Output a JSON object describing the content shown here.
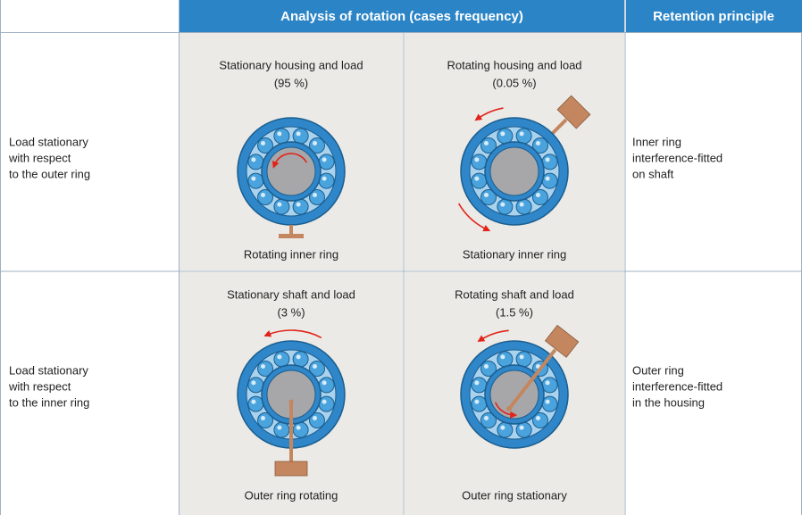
{
  "header": {
    "group": "Analysis of rotation (cases frequency)",
    "retention": "Retention principle"
  },
  "rows": [
    {
      "label": [
        "Load stationary",
        "with respect",
        "to the outer ring"
      ],
      "cases": [
        {
          "title": "Stationary housing and load",
          "frequency": "(95 %)",
          "caption": "Rotating inner ring"
        },
        {
          "title": "Rotating housing and load",
          "frequency": "(0.05 %)",
          "caption": "Stationary inner ring"
        }
      ],
      "retention": [
        "Inner ring",
        "interference-fitted",
        "on shaft"
      ]
    },
    {
      "label": [
        "Load stationary",
        "with respect",
        "to the inner ring"
      ],
      "cases": [
        {
          "title": "Stationary shaft and load",
          "frequency": "(3 %)",
          "caption": "Outer ring rotating"
        },
        {
          "title": "Rotating shaft and load",
          "frequency": "(1.5 %)",
          "caption": "Outer ring stationary"
        }
      ],
      "retention": [
        "Outer ring",
        "interference-fitted",
        "in the housing"
      ]
    }
  ]
}
